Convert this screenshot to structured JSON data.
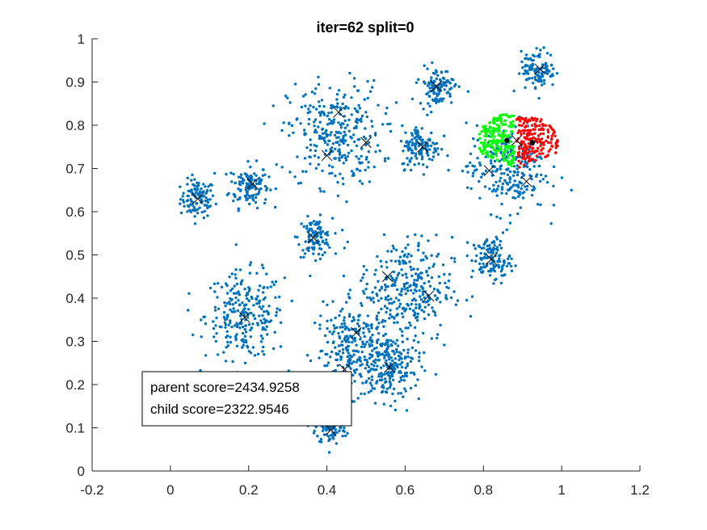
{
  "chart_data": {
    "type": "scatter",
    "title": "iter=62  split=0",
    "xlabel": "",
    "ylabel": "",
    "xlim": [
      -0.2,
      1.2
    ],
    "ylim": [
      0,
      1
    ],
    "xticks": [
      -0.2,
      0,
      0.2,
      0.4,
      0.6,
      0.8,
      1,
      1.2
    ],
    "xtick_labels": [
      "-0.2",
      "0",
      "0.2",
      "0.4",
      "0.6",
      "0.8",
      "1",
      "1.2"
    ],
    "yticks": [
      0,
      0.1,
      0.2,
      0.3,
      0.4,
      0.5,
      0.6,
      0.7,
      0.8,
      0.9,
      1
    ],
    "ytick_labels": [
      "0",
      "0.1",
      "0.2",
      "0.3",
      "0.4",
      "0.5",
      "0.6",
      "0.7",
      "0.8",
      "0.9",
      "1"
    ],
    "grid": false,
    "colors": {
      "points": "#0072BD",
      "child_a": "#00FF00",
      "child_b": "#FF0000",
      "centers": "#000000"
    },
    "clusters": [
      {
        "center": [
          0.07,
          0.63
        ],
        "spread": 0.022
      },
      {
        "center": [
          0.2,
          0.66
        ],
        "spread": 0.025
      },
      {
        "center": [
          0.19,
          0.36
        ],
        "spread": 0.05
      },
      {
        "center": [
          0.37,
          0.54
        ],
        "spread": 0.022
      },
      {
        "center": [
          0.41,
          0.1
        ],
        "spread": 0.02
      },
      {
        "center": [
          0.42,
          0.78
        ],
        "spread": 0.06
      },
      {
        "center": [
          0.47,
          0.28
        ],
        "spread": 0.05
      },
      {
        "center": [
          0.56,
          0.24
        ],
        "spread": 0.04
      },
      {
        "center": [
          0.6,
          0.42
        ],
        "spread": 0.06
      },
      {
        "center": [
          0.64,
          0.75
        ],
        "spread": 0.025
      },
      {
        "center": [
          0.68,
          0.89
        ],
        "spread": 0.022
      },
      {
        "center": [
          0.82,
          0.49
        ],
        "spread": 0.025
      },
      {
        "center": [
          0.86,
          0.7
        ],
        "spread": 0.05
      },
      {
        "center": [
          0.94,
          0.93
        ],
        "spread": 0.022
      }
    ],
    "centroids": [
      [
        0.07,
        0.63
      ],
      [
        0.21,
        0.665
      ],
      [
        0.19,
        0.355
      ],
      [
        0.365,
        0.54
      ],
      [
        0.41,
        0.095
      ],
      [
        0.43,
        0.83
      ],
      [
        0.4,
        0.73
      ],
      [
        0.5,
        0.76
      ],
      [
        0.475,
        0.32
      ],
      [
        0.445,
        0.235
      ],
      [
        0.56,
        0.24
      ],
      [
        0.555,
        0.45
      ],
      [
        0.66,
        0.405
      ],
      [
        0.645,
        0.75
      ],
      [
        0.68,
        0.89
      ],
      [
        0.82,
        0.49
      ],
      [
        0.815,
        0.695
      ],
      [
        0.91,
        0.67
      ],
      [
        0.885,
        0.765
      ],
      [
        0.945,
        0.93
      ]
    ],
    "split_children": [
      {
        "color": "child_a",
        "center": [
          0.85,
          0.77
        ],
        "points_region": {
          "x": [
            0.79,
            0.88
          ],
          "y": [
            0.7,
            0.83
          ]
        }
      },
      {
        "color": "child_b",
        "center": [
          0.93,
          0.76
        ],
        "points_region": {
          "x": [
            0.88,
            0.99
          ],
          "y": [
            0.7,
            0.82
          ]
        }
      }
    ],
    "split_centers": [
      [
        0.86,
        0.765
      ],
      [
        0.925,
        0.76
      ]
    ],
    "annotation": {
      "line1": "parent score=2434.9258",
      "line2": "child score=2322.9546"
    }
  }
}
